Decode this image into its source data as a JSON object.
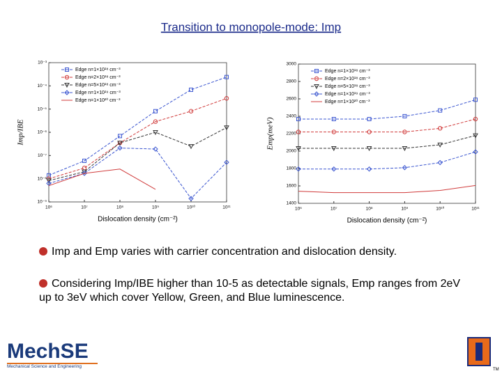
{
  "title": "Transition to monopole-mode: Imp",
  "chart_data": [
    {
      "type": "line",
      "x_label": "Dislocation density (cm⁻²)",
      "y_label": "Imp/IBE",
      "log_x": true,
      "log_y": true,
      "legend": "upper left",
      "x": [
        1000000,
        10000000,
        100000000,
        1000000000,
        10000000000,
        100000000000
      ],
      "xlim": [
        1000000,
        100000000000
      ],
      "xticks": [
        {
          "value": 1000000,
          "label": "10⁶"
        },
        {
          "value": 10000000,
          "label": "10⁷"
        },
        {
          "value": 100000000,
          "label": "10⁸"
        },
        {
          "value": 1000000000,
          "label": "10⁹"
        },
        {
          "value": 10000000000,
          "label": "10¹⁰"
        },
        {
          "value": 100000000000,
          "label": "10¹¹"
        }
      ],
      "ylim": [
        1e-09,
        0.001
      ],
      "yticks": [
        {
          "value": 1e-09,
          "label": "10⁻⁹"
        },
        {
          "value": 1e-08,
          "label": "10⁻⁸"
        },
        {
          "value": 1e-07,
          "label": "10⁻⁷"
        },
        {
          "value": 1e-06,
          "label": "10⁻⁶"
        },
        {
          "value": 1e-05,
          "label": "10⁻⁵"
        },
        {
          "value": 0.0001,
          "label": "10⁻⁴"
        },
        {
          "value": 0.001,
          "label": "10⁻³"
        }
      ],
      "series": [
        {
          "name": "Edge n=1×10¹⁸ cm⁻³",
          "color": "#3a55d0",
          "marker": "square",
          "values": [
            1.4e-08,
            5.9e-08,
            6.9e-07,
            8.1e-06,
            6.8e-05,
            0.00024
          ]
        },
        {
          "name": "Edge n=2×10¹⁸ cm⁻³",
          "color": "#d03a3a",
          "marker": "circle",
          "values": [
            1e-08,
            2.9e-08,
            3.5e-07,
            2.9e-06,
            8.1e-06,
            2.9e-05
          ]
        },
        {
          "name": "Edge n=5×10¹⁸ cm⁻³",
          "color": "#333333",
          "marker": "triangle-down",
          "values": [
            8.3e-09,
            2e-08,
            3.5e-07,
            1e-06,
            2.5e-07,
            1.6e-06
          ]
        },
        {
          "name": "Edge n=1×10¹⁹ cm⁻³",
          "color": "#3a55d0",
          "marker": "diamond",
          "values": [
            6.3e-09,
            1.7e-08,
            2.1e-07,
            1.9e-07,
            1.4e-09,
            5.1e-08
          ]
        },
        {
          "name": "Edge n=1×10²⁰ cm⁻³",
          "color": "#d03a3a",
          "marker": "none",
          "values": [
            5e-09,
            1.7e-08,
            2.6e-08,
            3.5e-09,
            null,
            null
          ]
        }
      ]
    },
    {
      "type": "line",
      "x_label": "Dislocation density (cm⁻²)",
      "y_label": "Emp(meV)",
      "log_x": true,
      "log_y": false,
      "legend": "upper left",
      "x": [
        1000000,
        10000000,
        100000000,
        1000000000,
        10000000000,
        100000000000
      ],
      "xlim": [
        1000000,
        100000000000
      ],
      "xticks": [
        {
          "value": 1000000,
          "label": "10⁶"
        },
        {
          "value": 10000000,
          "label": "10⁷"
        },
        {
          "value": 100000000,
          "label": "10⁸"
        },
        {
          "value": 1000000000,
          "label": "10⁹"
        },
        {
          "value": 10000000000,
          "label": "10¹⁰"
        },
        {
          "value": 100000000000,
          "label": "10¹¹"
        }
      ],
      "ylim": [
        1400,
        3000
      ],
      "yticks": [
        1400,
        1600,
        1800,
        2000,
        2200,
        2400,
        2600,
        2800,
        3000
      ],
      "series": [
        {
          "name": "Edge n=1×10¹⁸ cm⁻³",
          "color": "#3a55d0",
          "marker": "square",
          "values": [
            2368,
            2368,
            2368,
            2401,
            2467,
            2590
          ]
        },
        {
          "name": "Edge n=2×10¹⁸ cm⁻³",
          "color": "#d03a3a",
          "marker": "circle",
          "values": [
            2220,
            2220,
            2220,
            2220,
            2262,
            2368
          ]
        },
        {
          "name": "Edge n=5×10¹⁸ cm⁻³",
          "color": "#333333",
          "marker": "triangle-down",
          "values": [
            2032,
            2032,
            2032,
            2032,
            2073,
            2179
          ]
        },
        {
          "name": "Edge n=1×10¹⁹ cm⁻³",
          "color": "#3a55d0",
          "marker": "diamond",
          "values": [
            1794,
            1794,
            1794,
            1810,
            1868,
            1991
          ]
        },
        {
          "name": "Edge n=1×10²⁰ cm⁻³",
          "color": "#d03a3a",
          "marker": "none",
          "values": [
            1539,
            1523,
            1523,
            1523,
            1548,
            1605
          ]
        }
      ]
    }
  ],
  "bullets": [
    "Imp and Emp varies with carrier concentration and dislocation density.",
    "Considering Imp/IBE higher than 10-5 as detectable signals, Emp ranges from 2eV up to 3eV which cover Yellow, Green, and Blue luminescence."
  ],
  "logo": {
    "name": "MechSE",
    "subtitle": "Mechanical Science and Engineering"
  },
  "mark": "TM"
}
